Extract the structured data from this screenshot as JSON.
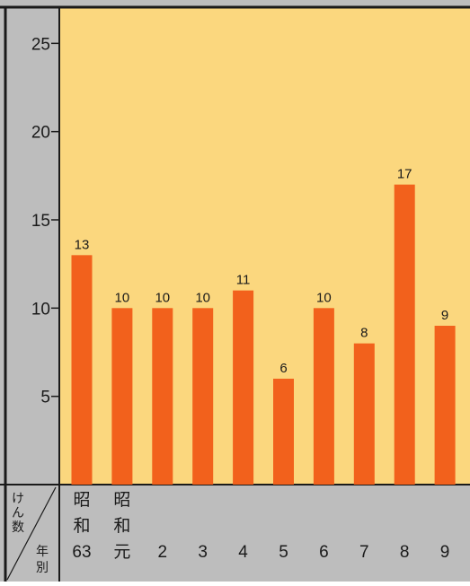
{
  "chart_data": {
    "type": "bar",
    "title": "",
    "ylabel": "けん数",
    "xlabel": "年別",
    "ylim": [
      0,
      27
    ],
    "yticks": [
      5,
      10,
      15,
      20,
      25
    ],
    "categories": [
      [
        "昭",
        "和",
        "63"
      ],
      [
        "昭",
        "和",
        "元"
      ],
      [
        "2"
      ],
      [
        "3"
      ],
      [
        "4"
      ],
      [
        "5"
      ],
      [
        "6"
      ],
      [
        "7"
      ],
      [
        "8"
      ],
      [
        "9"
      ]
    ],
    "values": [
      13,
      10,
      10,
      10,
      11,
      6,
      10,
      8,
      17,
      9
    ],
    "data_labels": [
      "13",
      "10",
      "10",
      "10",
      "11",
      "6",
      "10",
      "8",
      "17",
      "9"
    ],
    "grid": false,
    "legend": "none"
  },
  "colors": {
    "plot_background": "#fbd77e",
    "bar": "#f2611c",
    "axis_panel": "#bdbdbd",
    "frame": "#1a1a1a",
    "text": "#1a1a1a"
  }
}
